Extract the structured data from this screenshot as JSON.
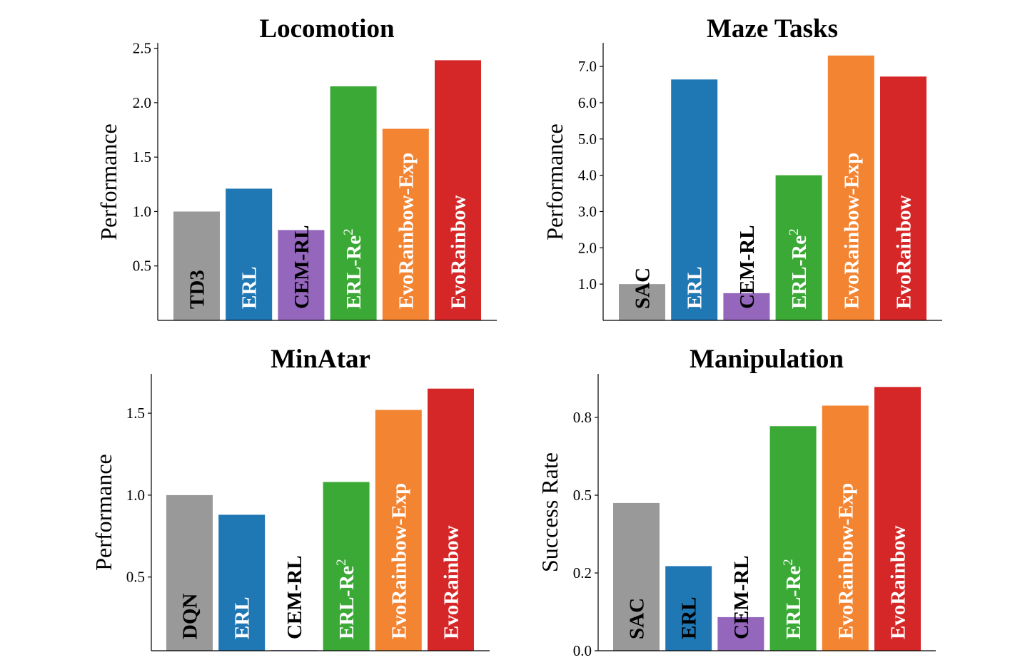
{
  "chart_data": [
    {
      "type": "bar",
      "title": "Locomotion",
      "ylabel": "Performance",
      "ylim": [
        0,
        2.55
      ],
      "yticks": [
        0.5,
        1.0,
        1.5,
        2.0,
        2.5
      ],
      "ytick_labels": [
        "0.5",
        "1.0",
        "1.5",
        "2.0",
        "2.5"
      ],
      "grid": false,
      "categories": [
        "TD3",
        "ERL",
        "CEM-RL",
        "ERL-Re2",
        "EvoRainbow-Exp",
        "EvoRainbow"
      ],
      "values": [
        1.0,
        1.21,
        0.83,
        2.15,
        1.76,
        2.39
      ],
      "colors": [
        "#999999",
        "#1f77b4",
        "#9467bd",
        "#3ba935",
        "#f28432",
        "#d62728"
      ],
      "label_colors": [
        "#000000",
        "#ffffff",
        "#000000",
        "#ffffff",
        "#ffffff",
        "#ffffff"
      ]
    },
    {
      "type": "bar",
      "title": "Maze Tasks",
      "ylabel": "Performance",
      "ylim": [
        0,
        7.65
      ],
      "yticks": [
        1,
        2,
        3,
        4,
        5,
        6,
        7
      ],
      "ytick_labels": [
        "1.0",
        "2.0",
        "3.0",
        "4.0",
        "5.0",
        "6.0",
        "7.0"
      ],
      "grid": false,
      "categories": [
        "SAC",
        "ERL",
        "CEM-RL",
        "ERL-Re2",
        "EvoRainbow-Exp",
        "EvoRainbow"
      ],
      "values": [
        1.0,
        6.64,
        0.75,
        4.0,
        7.3,
        6.72
      ],
      "colors": [
        "#999999",
        "#1f77b4",
        "#9467bd",
        "#3ba935",
        "#f28432",
        "#d62728"
      ],
      "label_colors": [
        "#000000",
        "#ffffff",
        "#000000",
        "#ffffff",
        "#ffffff",
        "#ffffff"
      ]
    },
    {
      "type": "bar",
      "title": "MinAtar",
      "ylabel": "Performance",
      "ylim": [
        0.05,
        1.74
      ],
      "yticks": [
        0.5,
        1.0,
        1.5
      ],
      "ytick_labels": [
        "0.5",
        "1.0",
        "1.5"
      ],
      "grid": false,
      "categories": [
        "DQN",
        "ERL",
        "CEM-RL",
        "ERL-Re2",
        "EvoRainbow-Exp",
        "EvoRainbow"
      ],
      "values": [
        1.0,
        0.88,
        0.05,
        1.08,
        1.52,
        1.65
      ],
      "colors": [
        "#999999",
        "#1f77b4",
        "#9467bd",
        "#3ba935",
        "#f28432",
        "#d62728"
      ],
      "label_colors": [
        "#000000",
        "#ffffff",
        "#000000",
        "#ffffff",
        "#ffffff",
        "#ffffff"
      ]
    },
    {
      "type": "bar",
      "title": "Manipulation",
      "ylabel": "Success Rate",
      "ylim": [
        0,
        0.89
      ],
      "yticks": [
        0.0,
        0.25,
        0.5,
        0.75
      ],
      "ytick_labels": [
        "0.0",
        "0.2",
        "0.5",
        "0.8"
      ],
      "grid": false,
      "categories": [
        "SAC",
        "ERL",
        "CEM-RL",
        "ERL-Re2",
        "EvoRainbow-Exp",
        "EvoRainbow"
      ],
      "values": [
        0.475,
        0.272,
        0.108,
        0.722,
        0.788,
        0.848
      ],
      "colors": [
        "#999999",
        "#1f77b4",
        "#9467bd",
        "#3ba935",
        "#f28432",
        "#d62728"
      ],
      "label_colors": [
        "#000000",
        "#000000",
        "#000000",
        "#ffffff",
        "#ffffff",
        "#ffffff"
      ]
    }
  ]
}
